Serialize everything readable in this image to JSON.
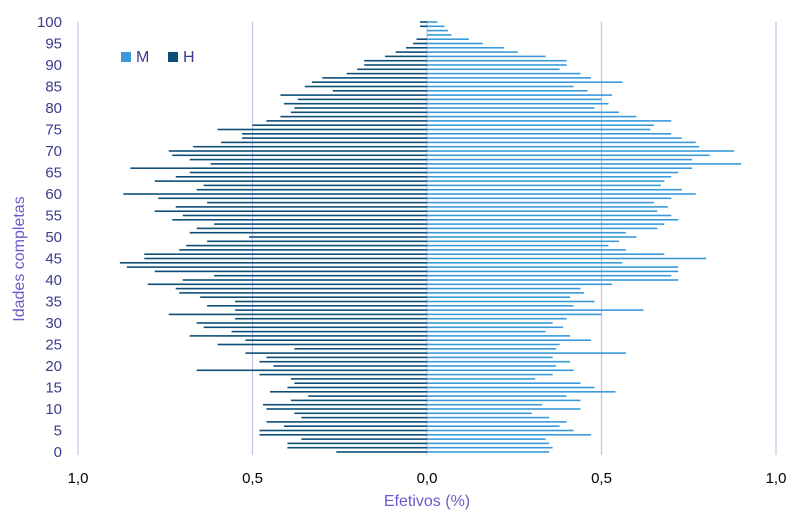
{
  "chart_data": {
    "type": "bar",
    "orientation": "horizontal",
    "subtype": "population-pyramid",
    "xlabel": "Efetivos (%)",
    "ylabel": "Idades completas",
    "xlim": [
      -1.0,
      1.0
    ],
    "ylim": [
      0,
      100
    ],
    "x_ticks": [
      {
        "value": -1.0,
        "label": "1,0"
      },
      {
        "value": -0.5,
        "label": "0,5"
      },
      {
        "value": 0.0,
        "label": "0,0"
      },
      {
        "value": 0.5,
        "label": "0,5"
      },
      {
        "value": 1.0,
        "label": "1,0"
      }
    ],
    "y_ticks": [
      0,
      5,
      10,
      15,
      20,
      25,
      30,
      35,
      40,
      45,
      50,
      55,
      60,
      65,
      70,
      75,
      80,
      85,
      90,
      95,
      100
    ],
    "vertical_gridlines": true,
    "legend_position": "top-left",
    "ages": [
      0,
      1,
      2,
      3,
      4,
      5,
      6,
      7,
      8,
      9,
      10,
      11,
      12,
      13,
      14,
      15,
      16,
      17,
      18,
      19,
      20,
      21,
      22,
      23,
      24,
      25,
      26,
      27,
      28,
      29,
      30,
      31,
      32,
      33,
      34,
      35,
      36,
      37,
      38,
      39,
      40,
      41,
      42,
      43,
      44,
      45,
      46,
      47,
      48,
      49,
      50,
      51,
      52,
      53,
      54,
      55,
      56,
      57,
      58,
      59,
      60,
      61,
      62,
      63,
      64,
      65,
      66,
      67,
      68,
      69,
      70,
      71,
      72,
      73,
      74,
      75,
      76,
      77,
      78,
      79,
      80,
      81,
      82,
      83,
      84,
      85,
      86,
      87,
      88,
      89,
      90,
      91,
      92,
      93,
      94,
      95,
      96,
      97,
      98,
      99,
      100
    ],
    "series": [
      {
        "name": "M",
        "color": "#3a9ad9",
        "values": [
          0.35,
          0.36,
          0.35,
          0.34,
          0.47,
          0.42,
          0.38,
          0.4,
          0.35,
          0.3,
          0.44,
          0.33,
          0.44,
          0.4,
          0.54,
          0.48,
          0.44,
          0.31,
          0.36,
          0.42,
          0.37,
          0.41,
          0.36,
          0.57,
          0.37,
          0.38,
          0.47,
          0.41,
          0.34,
          0.39,
          0.36,
          0.4,
          0.5,
          0.62,
          0.42,
          0.48,
          0.41,
          0.45,
          0.44,
          0.53,
          0.72,
          0.7,
          0.72,
          0.72,
          0.56,
          0.8,
          0.68,
          0.57,
          0.52,
          0.55,
          0.6,
          0.57,
          0.66,
          0.68,
          0.72,
          0.7,
          0.66,
          0.69,
          0.65,
          0.7,
          0.77,
          0.73,
          0.67,
          0.68,
          0.7,
          0.72,
          0.76,
          0.9,
          0.76,
          0.81,
          0.88,
          0.78,
          0.77,
          0.73,
          0.7,
          0.64,
          0.65,
          0.7,
          0.6,
          0.55,
          0.48,
          0.52,
          0.5,
          0.53,
          0.46,
          0.42,
          0.56,
          0.47,
          0.44,
          0.38,
          0.4,
          0.4,
          0.34,
          0.26,
          0.22,
          0.16,
          0.12,
          0.07,
          0.06,
          0.05,
          0.03
        ]
      },
      {
        "name": "H",
        "color": "#0e4f77",
        "values": [
          0.26,
          0.4,
          0.4,
          0.36,
          0.48,
          0.48,
          0.41,
          0.46,
          0.36,
          0.38,
          0.46,
          0.47,
          0.39,
          0.34,
          0.45,
          0.4,
          0.38,
          0.39,
          0.48,
          0.66,
          0.44,
          0.48,
          0.46,
          0.52,
          0.38,
          0.6,
          0.52,
          0.68,
          0.56,
          0.64,
          0.66,
          0.55,
          0.74,
          0.55,
          0.63,
          0.55,
          0.65,
          0.71,
          0.72,
          0.8,
          0.7,
          0.61,
          0.78,
          0.86,
          0.88,
          0.81,
          0.81,
          0.71,
          0.69,
          0.63,
          0.51,
          0.68,
          0.66,
          0.61,
          0.73,
          0.7,
          0.78,
          0.72,
          0.63,
          0.77,
          0.87,
          0.66,
          0.64,
          0.78,
          0.72,
          0.68,
          0.85,
          0.62,
          0.68,
          0.73,
          0.74,
          0.67,
          0.59,
          0.53,
          0.53,
          0.6,
          0.5,
          0.46,
          0.42,
          0.39,
          0.38,
          0.41,
          0.37,
          0.42,
          0.27,
          0.35,
          0.33,
          0.3,
          0.23,
          0.2,
          0.18,
          0.18,
          0.12,
          0.09,
          0.06,
          0.04,
          0.03,
          0.0,
          0.0,
          0.02,
          0.02
        ]
      }
    ]
  }
}
